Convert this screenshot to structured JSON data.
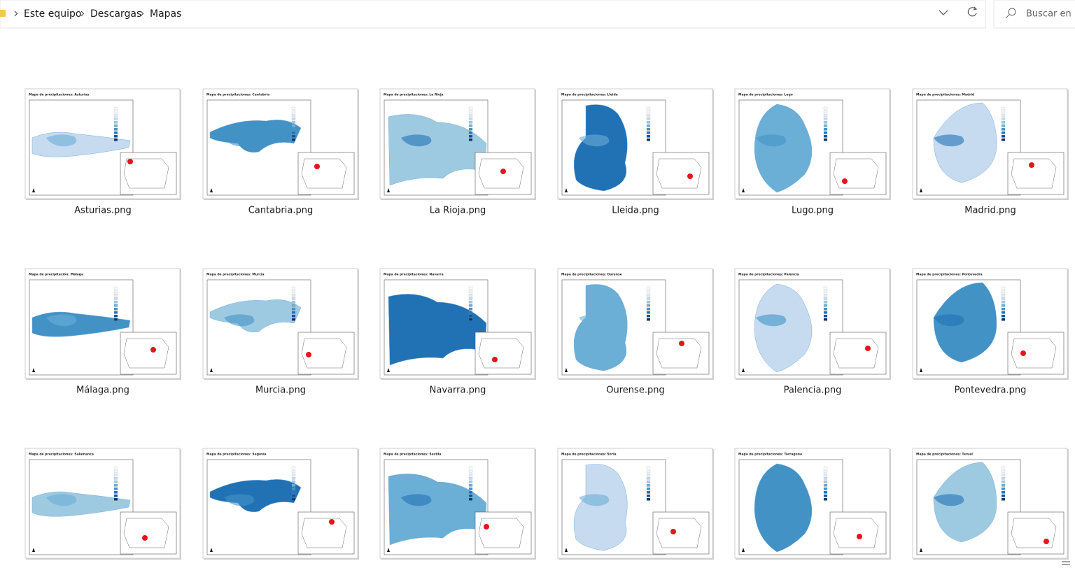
{
  "address_bar": {
    "breadcrumb": [
      "Este equipo",
      "Descargas",
      "Mapas"
    ]
  },
  "search": {
    "placeholder": "Buscar en M"
  },
  "files": [
    {
      "title": "Mapa de precipitaciones: Asturias",
      "name": "Asturias.png"
    },
    {
      "title": "Mapa de precipitaciones: Cantabria",
      "name": "Cantabria.png"
    },
    {
      "title": "Mapa de precipitaciones: La Rioja",
      "name": "La Rioja.png"
    },
    {
      "title": "Mapa de precipitaciones: Lleida",
      "name": "Lleida.png"
    },
    {
      "title": "Mapa de precipitaciones: Lugo",
      "name": "Lugo.png"
    },
    {
      "title": "Mapa de precipitaciones: Madrid",
      "name": "Madrid.png"
    },
    {
      "title": "Mapa de precipitación: Málaga",
      "name": "Málaga.png"
    },
    {
      "title": "Mapa de precipitaciones: Murcia",
      "name": "Murcia.png"
    },
    {
      "title": "Mapa de precipitaciones: Navarra",
      "name": "Navarra.png"
    },
    {
      "title": "Mapa de precipitaciones: Ourense",
      "name": "Ourense.png"
    },
    {
      "title": "Mapa de precipitaciones: Palencia",
      "name": "Palencia.png"
    },
    {
      "title": "Mapa de precipitaciones: Pontevedra",
      "name": "Pontevedra.png"
    },
    {
      "title": "Mapa de precipitaciones: Salamanca"
    },
    {
      "title": "Mapa de precipitaciones: Segovia"
    },
    {
      "title": "Mapa de precipitaciones: Sevilla"
    },
    {
      "title": "Mapa de precipitaciones: Soria"
    },
    {
      "title": "Mapa de precipitaciones: Tarragona"
    },
    {
      "title": "Mapa de precipitaciones: Teruel"
    }
  ]
}
